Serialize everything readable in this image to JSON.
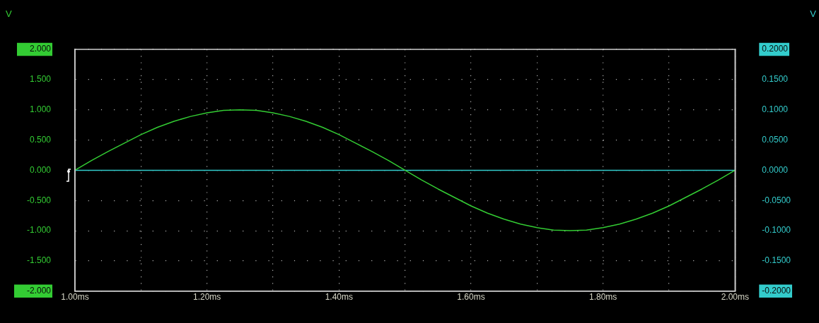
{
  "chart_data": {
    "type": "line",
    "xlabel": null,
    "ylabel": "V",
    "y2label": "V",
    "xlim": [
      1.0,
      2.0
    ],
    "xticks": [
      {
        "value": 1.0,
        "label": "1.00ms"
      },
      {
        "value": 1.1,
        "label": null
      },
      {
        "value": 1.2,
        "label": "1.20ms"
      },
      {
        "value": 1.3,
        "label": null
      },
      {
        "value": 1.4,
        "label": "1.40ms"
      },
      {
        "value": 1.5,
        "label": null
      },
      {
        "value": 1.6,
        "label": "1.60ms"
      },
      {
        "value": 1.7,
        "label": null
      },
      {
        "value": 1.8,
        "label": "1.80ms"
      },
      {
        "value": 1.9,
        "label": null
      },
      {
        "value": 2.0,
        "label": "2.00ms"
      }
    ],
    "ylim": [
      -2,
      2
    ],
    "yticks": [
      {
        "value": -2,
        "label": "-2.000"
      },
      {
        "value": -1.5,
        "label": "-1.500"
      },
      {
        "value": -1,
        "label": "-1.000"
      },
      {
        "value": -0.5,
        "label": "-0.500"
      },
      {
        "value": 0,
        "label": "0.000"
      },
      {
        "value": 0.5,
        "label": "0.500"
      },
      {
        "value": 1,
        "label": "1.000"
      },
      {
        "value": 1.5,
        "label": "1.500"
      },
      {
        "value": 2,
        "label": "2.000"
      }
    ],
    "y2lim": [
      -0.2,
      0.2
    ],
    "y2ticks": [
      {
        "value": -0.2,
        "label": "-0.2000"
      },
      {
        "value": -0.15,
        "label": "-0.1500"
      },
      {
        "value": -0.1,
        "label": "-0.1000"
      },
      {
        "value": -0.05,
        "label": "-0.0500"
      },
      {
        "value": 0,
        "label": "0.0000"
      },
      {
        "value": 0.05,
        "label": "0.0500"
      },
      {
        "value": 0.1,
        "label": "0.1000"
      },
      {
        "value": 0.15,
        "label": "0.1500"
      },
      {
        "value": 0.2,
        "label": "0.2000"
      }
    ],
    "grid": true,
    "legend": false,
    "marker": "none",
    "line_style": "solid",
    "series": [
      {
        "color": "#33cc33",
        "x": [
          1.0,
          1.025,
          1.05,
          1.075,
          1.1,
          1.125,
          1.15,
          1.175,
          1.2,
          1.225,
          1.25,
          1.275,
          1.3,
          1.325,
          1.35,
          1.375,
          1.4,
          1.425,
          1.45,
          1.475,
          1.5,
          1.525,
          1.55,
          1.575,
          1.6,
          1.625,
          1.65,
          1.675,
          1.7,
          1.725,
          1.75,
          1.775,
          1.8,
          1.825,
          1.85,
          1.875,
          1.9,
          1.925,
          1.95,
          1.975,
          2.0
        ],
        "values": [
          0,
          0.16,
          0.31,
          0.45,
          0.59,
          0.71,
          0.81,
          0.89,
          0.95,
          0.99,
          1.0,
          0.99,
          0.95,
          0.89,
          0.81,
          0.71,
          0.59,
          0.45,
          0.31,
          0.16,
          0,
          -0.16,
          -0.31,
          -0.45,
          -0.59,
          -0.71,
          -0.81,
          -0.89,
          -0.95,
          -0.99,
          -1.0,
          -0.99,
          -0.95,
          -0.89,
          -0.81,
          -0.71,
          -0.59,
          -0.45,
          -0.31,
          -0.16,
          0
        ]
      },
      {
        "color": "#33cccc",
        "axis": "y2",
        "x": [
          1.0,
          1.1,
          1.2,
          1.3,
          1.4,
          1.5,
          1.6,
          1.7,
          1.8,
          1.9,
          2.0
        ],
        "values": [
          0,
          0,
          0,
          0,
          0,
          0,
          0,
          0,
          0,
          0,
          0
        ]
      }
    ]
  }
}
